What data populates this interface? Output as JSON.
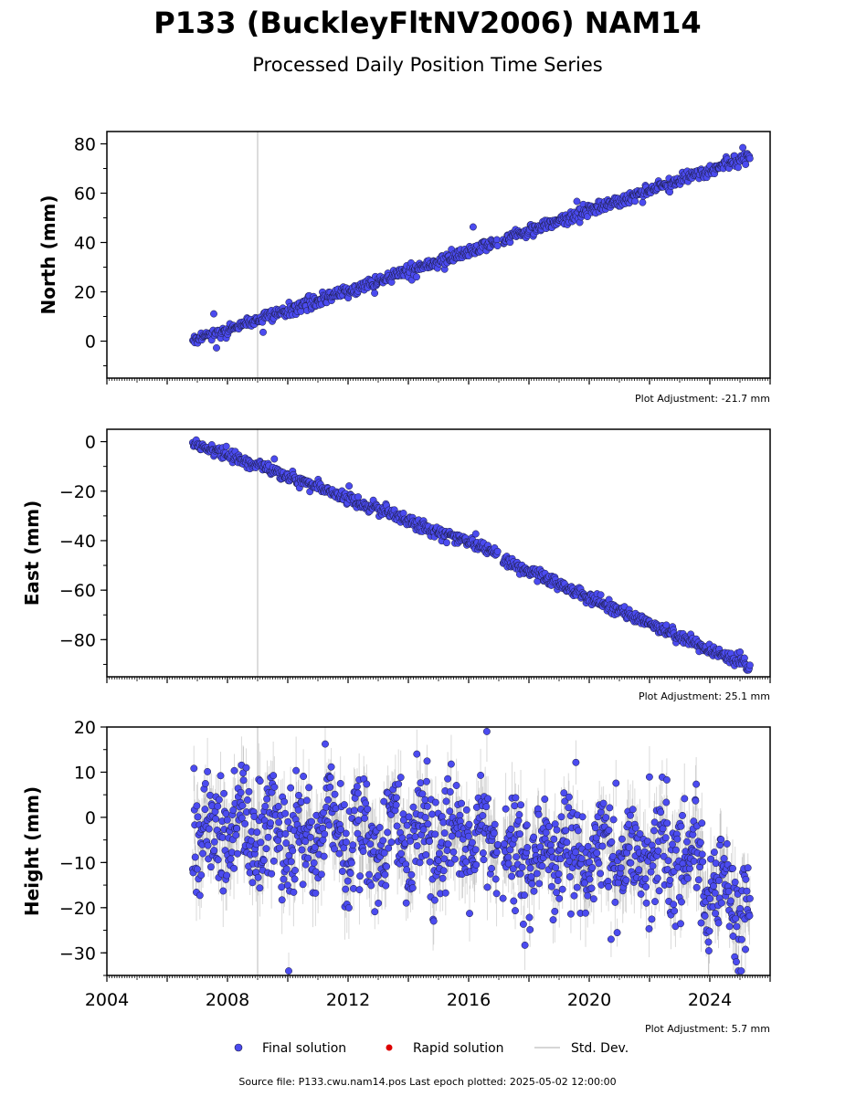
{
  "title": "P133 (BuckleyFltNV2006) NAM14",
  "subtitle": "Processed Daily Position Time Series",
  "legend": {
    "final": "Final solution",
    "rapid": "Rapid solution",
    "std": "Std. Dev."
  },
  "source": "Source file: P133.cwu.nam14.pos  Last epoch plotted: 2025-05-02 12:00:00",
  "colors": {
    "final": "#4b4bf0",
    "rapid": "#dd0000",
    "std": "#c8c8c8",
    "marker_edge": "#1a1a3a"
  },
  "chart_data": [
    {
      "type": "scatter",
      "name": "north",
      "ylabel": "North (mm)",
      "adjustment": "Plot Adjustment: -21.7 mm",
      "xlim": [
        2004,
        2026
      ],
      "ylim": [
        -15,
        85
      ],
      "yticks": [
        "0",
        "20",
        "40",
        "60",
        "80"
      ],
      "ytick_values": [
        0,
        20,
        40,
        60,
        80
      ],
      "x_start": 2006.85,
      "x_end": 2025.33,
      "trend": [
        {
          "x": 2006.85,
          "y": 0
        },
        {
          "x": 2016.95,
          "y": 40
        },
        {
          "x": 2017.15,
          "y": 41.5
        },
        {
          "x": 2025.33,
          "y": 75
        }
      ],
      "scatter_mm": 1.3,
      "vline_x": 2009.0
    },
    {
      "type": "scatter",
      "name": "east",
      "ylabel": "East (mm)",
      "adjustment": "Plot Adjustment: 25.1 mm",
      "xlim": [
        2004,
        2026
      ],
      "ylim": [
        -95,
        5
      ],
      "yticks": [
        "0",
        "−20",
        "−40",
        "−60",
        "−80"
      ],
      "ytick_values": [
        0,
        -20,
        -40,
        -60,
        -80
      ],
      "x_start": 2006.85,
      "x_end": 2025.33,
      "trend": [
        {
          "x": 2006.85,
          "y": 0
        },
        {
          "x": 2016.95,
          "y": -45
        },
        {
          "x": 2017.15,
          "y": -48
        },
        {
          "x": 2025.33,
          "y": -91
        }
      ],
      "scatter_mm": 1.2,
      "vline_x": 2009.0
    },
    {
      "type": "scatter",
      "name": "height",
      "ylabel": "Height (mm)",
      "adjustment": "Plot Adjustment: 5.7 mm",
      "xlim": [
        2004,
        2026
      ],
      "ylim": [
        -35,
        20
      ],
      "yticks": [
        "20",
        "10",
        "0",
        "−10",
        "−20",
        "−30"
      ],
      "ytick_values": [
        20,
        10,
        0,
        -10,
        -20,
        -30
      ],
      "xticks": [
        "2004",
        "2008",
        "2012",
        "2016",
        "2020",
        "2024"
      ],
      "xtick_values": [
        2004,
        2008,
        2012,
        2016,
        2020,
        2024
      ],
      "x_start": 2006.85,
      "x_end": 2025.33,
      "trend": [
        {
          "x": 2006.85,
          "y": -3
        },
        {
          "x": 2016.95,
          "y": -5
        },
        {
          "x": 2017.15,
          "y": -8
        },
        {
          "x": 2023.7,
          "y": -9
        },
        {
          "x": 2023.8,
          "y": -16
        },
        {
          "x": 2025.33,
          "y": -18
        }
      ],
      "scatter_mm": 6.0,
      "vline_x": 2009.0
    }
  ]
}
